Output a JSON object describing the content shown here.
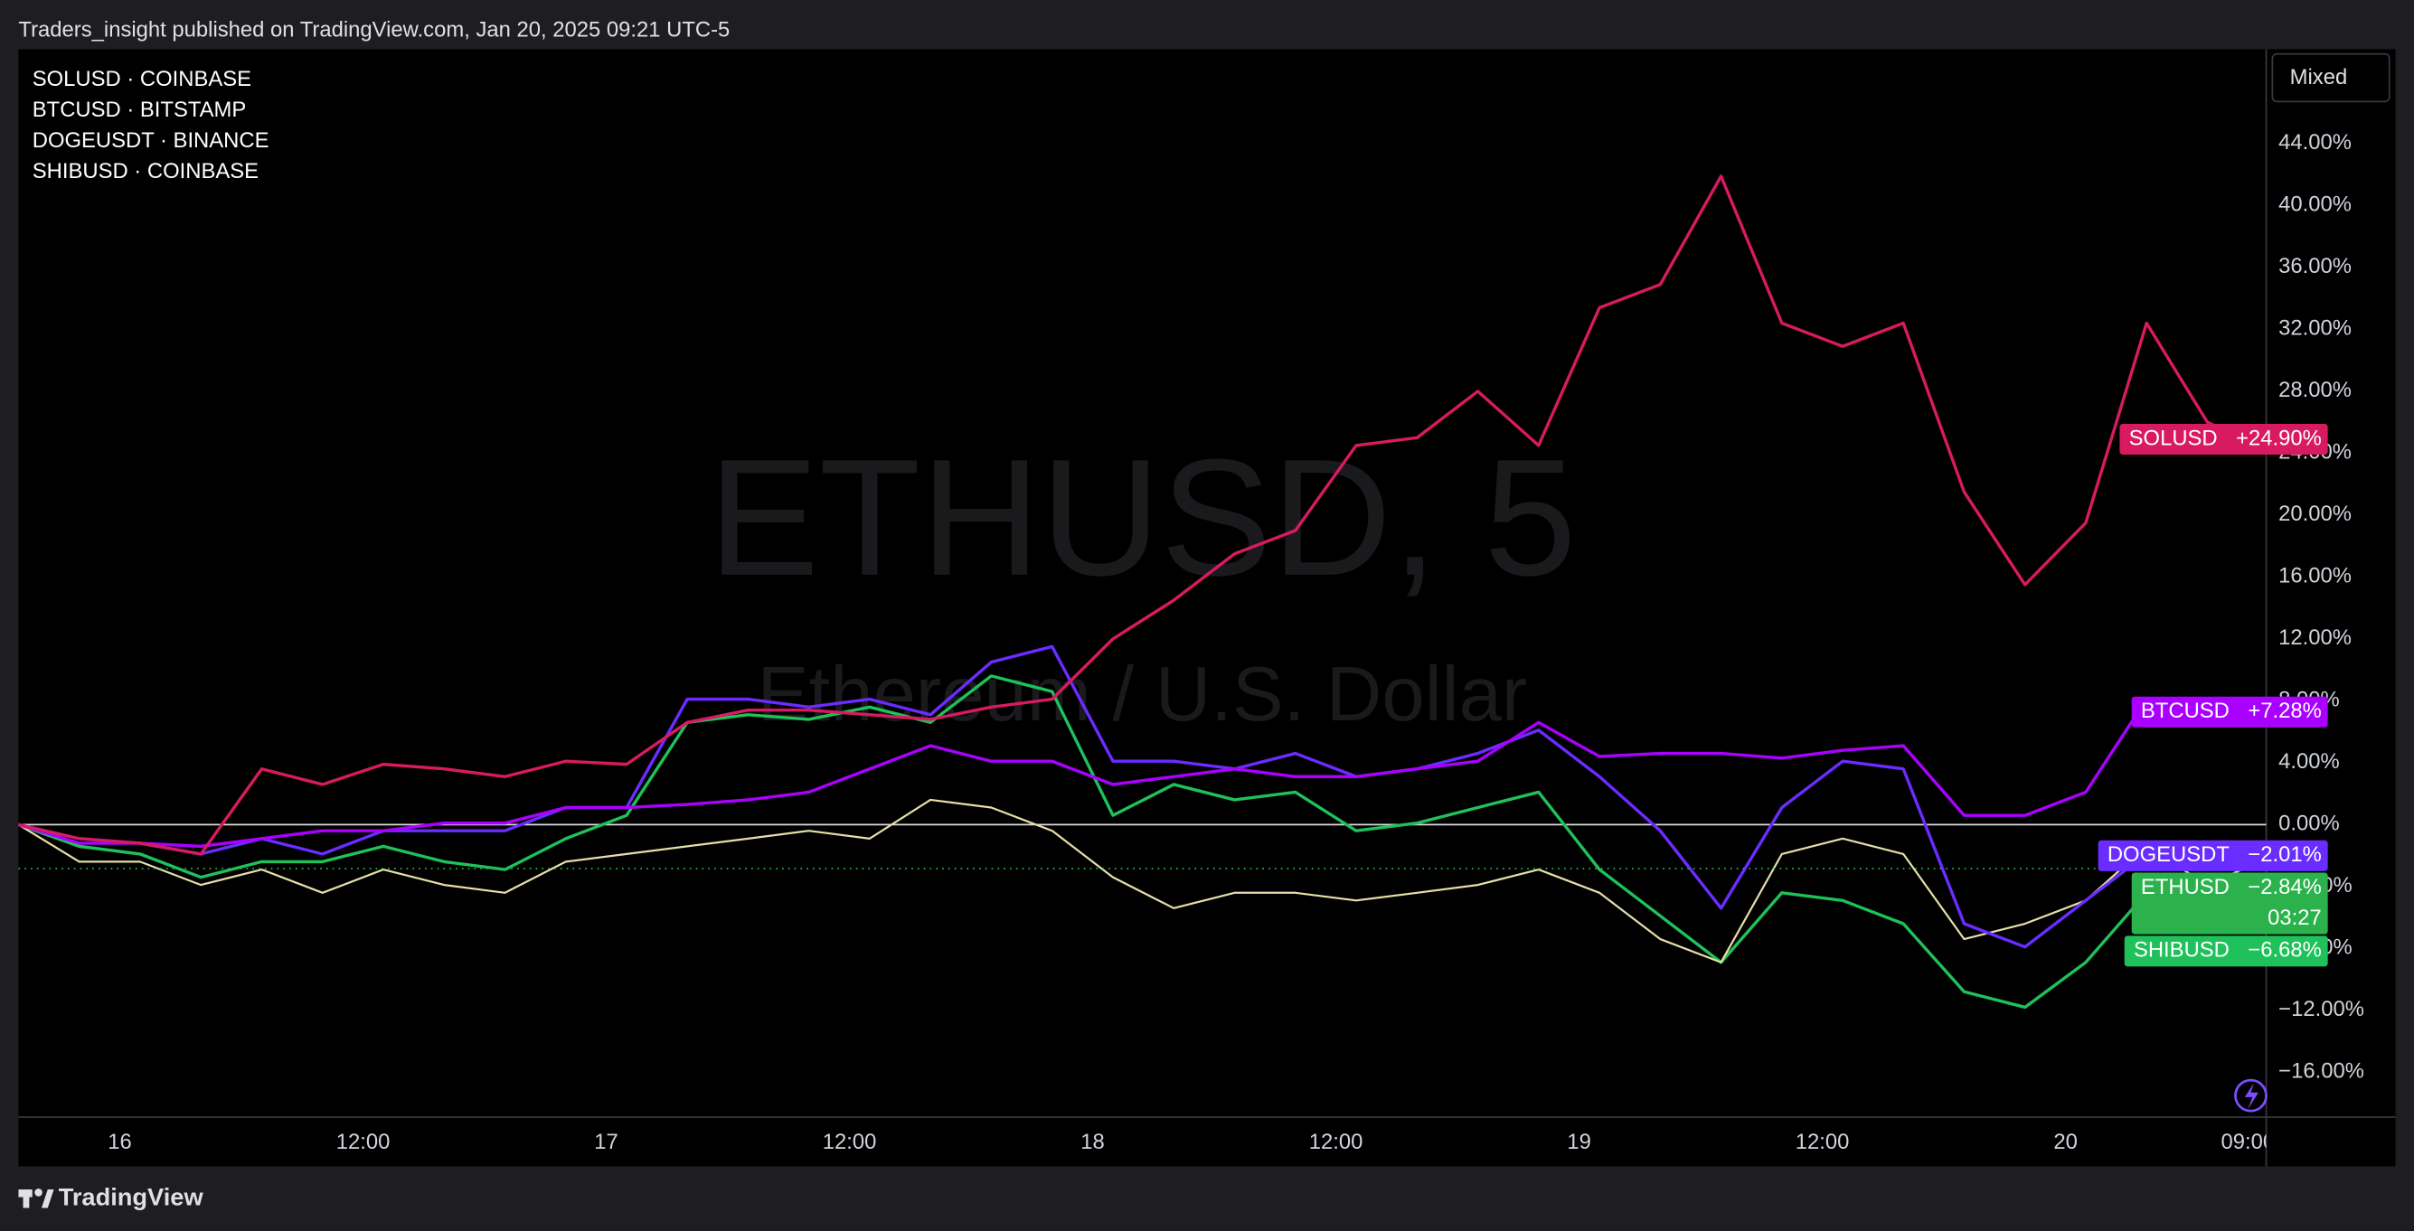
{
  "header": "Traders_insight published on TradingView.com, Jan 20, 2025 09:21 UTC-5",
  "footer": "TradingView",
  "scale_button": "Mixed",
  "chart_data": {
    "type": "line",
    "watermark": {
      "symbol": "ETHUSD, 5",
      "description": "Ethereum / U.S. Dollar"
    },
    "legend": [
      "SOLUSD · COINBASE",
      "BTCUSD · BITSTAMP",
      "DOGEUSDT · BINANCE",
      "SHIBUSD · COINBASE"
    ],
    "x": [
      -5,
      -2,
      1,
      4,
      7,
      10,
      13,
      16,
      19,
      22,
      25,
      28,
      31,
      34,
      37,
      40,
      43,
      46,
      49,
      52,
      55,
      58,
      61,
      64,
      67,
      70,
      73,
      76,
      79,
      82,
      85,
      88,
      91,
      94,
      97,
      100,
      103,
      104.8
    ],
    "xlim": [
      -5,
      105.9
    ],
    "xticks": [
      {
        "value": 0,
        "label": "16"
      },
      {
        "value": 12,
        "label": "12:00"
      },
      {
        "value": 24,
        "label": "17"
      },
      {
        "value": 36,
        "label": "12:00"
      },
      {
        "value": 48,
        "label": "18"
      },
      {
        "value": 60,
        "label": "12:00"
      },
      {
        "value": 72,
        "label": "19"
      },
      {
        "value": 84,
        "label": "12:00"
      },
      {
        "value": 96,
        "label": "20"
      },
      {
        "value": 105,
        "label": "09:00"
      }
    ],
    "ylim": [
      -18.9,
      50
    ],
    "yticks": [
      {
        "value": -16,
        "label": "−16.00%"
      },
      {
        "value": -12,
        "label": "−12.00%"
      },
      {
        "value": -8,
        "label": "−8.00%"
      },
      {
        "value": -4,
        "label": "−4.00%"
      },
      {
        "value": 0,
        "label": "0.00%"
      },
      {
        "value": 4,
        "label": "4.00%"
      },
      {
        "value": 8,
        "label": "8.00%"
      },
      {
        "value": 12,
        "label": "12.00%"
      },
      {
        "value": 16,
        "label": "16.00%"
      },
      {
        "value": 20,
        "label": "20.00%"
      },
      {
        "value": 24,
        "label": "24.00%"
      },
      {
        "value": 28,
        "label": "28.00%"
      },
      {
        "value": 32,
        "label": "32.00%"
      },
      {
        "value": 36,
        "label": "36.00%"
      },
      {
        "value": 40,
        "label": "40.00%"
      },
      {
        "value": 44,
        "label": "44.00%"
      }
    ],
    "grid": false,
    "series": [
      {
        "name": "SOLUSD",
        "color": "#d81b60",
        "last_label": "+24.90%",
        "values": [
          0,
          -0.9,
          -1.2,
          -1.9,
          3.6,
          2.6,
          3.9,
          3.6,
          3.1,
          4.1,
          3.9,
          6.6,
          7.4,
          7.4,
          7.1,
          6.8,
          7.6,
          8.1,
          12.0,
          14.5,
          17.5,
          19.0,
          24.5,
          25.0,
          28.0,
          24.5,
          33.4,
          34.9,
          41.9,
          32.4,
          30.9,
          32.4,
          21.5,
          15.5,
          19.5,
          32.4,
          26.0,
          24.9
        ]
      },
      {
        "name": "BTCUSD",
        "color": "#aa00ff",
        "last_label": "+7.28%",
        "values": [
          0,
          -1.2,
          -1.2,
          -1.4,
          -0.9,
          -0.4,
          -0.4,
          0.1,
          0.1,
          1.1,
          1.1,
          1.3,
          1.6,
          2.1,
          3.6,
          5.1,
          4.1,
          4.1,
          2.6,
          3.1,
          3.6,
          3.1,
          3.1,
          3.6,
          4.1,
          6.6,
          4.4,
          4.6,
          4.6,
          4.3,
          4.8,
          5.1,
          0.6,
          0.6,
          2.1,
          8.1,
          7.1,
          7.28
        ]
      },
      {
        "name": "DOGEUSDT",
        "color": "#6a2cff",
        "last_label": "−2.01%",
        "values": [
          0,
          -0.9,
          -1.2,
          -1.9,
          -0.9,
          -1.9,
          -0.4,
          -0.4,
          -0.4,
          1.1,
          1.1,
          8.1,
          8.1,
          7.6,
          8.1,
          7.1,
          10.5,
          11.5,
          4.1,
          4.1,
          3.6,
          4.6,
          3.1,
          3.6,
          4.6,
          6.1,
          3.1,
          -0.4,
          -5.4,
          1.1,
          4.1,
          3.6,
          -6.4,
          -7.9,
          -4.9,
          -1.9,
          -2.4,
          -2.01
        ]
      },
      {
        "name": "ETHUSD",
        "color": "#e6dfa8",
        "tag_color": "#2bb24c",
        "last_label": "−2.84%",
        "countdown": "03:27",
        "values": [
          0,
          -2.4,
          -2.4,
          -3.9,
          -2.9,
          -4.4,
          -2.9,
          -3.9,
          -4.4,
          -2.4,
          -1.9,
          -1.4,
          -0.9,
          -0.4,
          -0.9,
          1.6,
          1.1,
          -0.4,
          -3.4,
          -5.4,
          -4.4,
          -4.4,
          -4.9,
          -4.4,
          -3.9,
          -2.9,
          -4.4,
          -7.4,
          -8.9,
          -1.9,
          -0.9,
          -1.9,
          -7.4,
          -6.4,
          -4.9,
          -1.4,
          -3.9,
          -2.84
        ]
      },
      {
        "name": "SHIBUSD",
        "color": "#1fc15a",
        "last_label": "−6.68%",
        "values": [
          0,
          -1.4,
          -1.9,
          -3.4,
          -2.4,
          -2.4,
          -1.4,
          -2.4,
          -2.9,
          -0.9,
          0.6,
          6.6,
          7.1,
          6.8,
          7.6,
          6.6,
          9.6,
          8.6,
          0.6,
          2.6,
          1.6,
          2.1,
          -0.4,
          0.1,
          1.1,
          2.1,
          -2.9,
          -5.9,
          -8.9,
          -4.4,
          -4.9,
          -6.4,
          -10.8,
          -11.8,
          -8.9,
          -4.4,
          -5.9,
          -6.68
        ]
      }
    ]
  }
}
